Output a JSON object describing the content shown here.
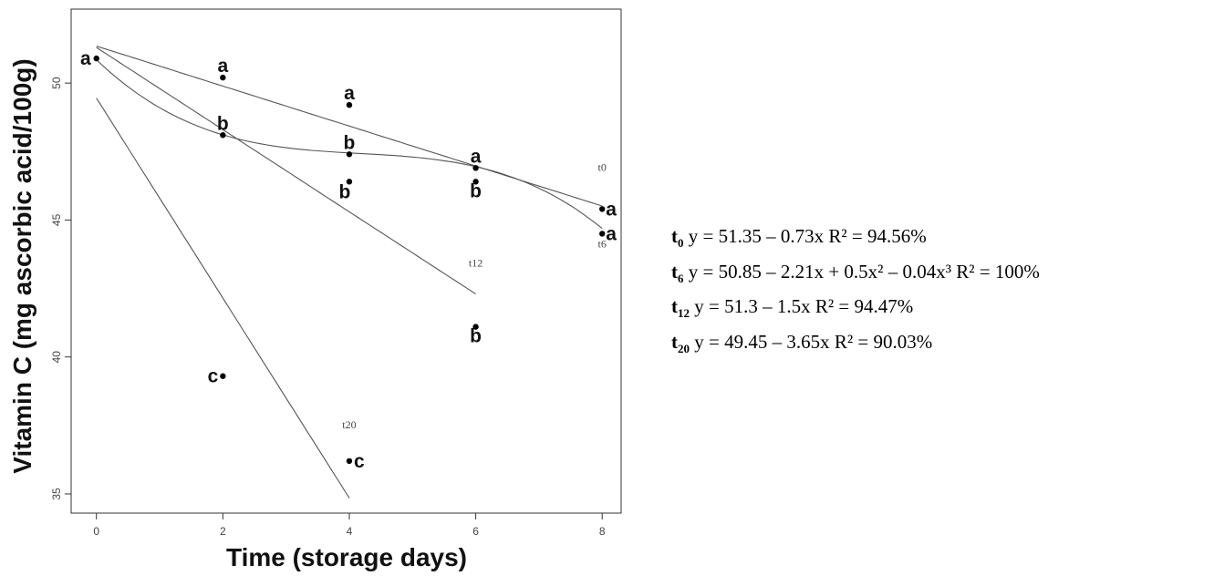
{
  "chart_data": {
    "type": "scatter",
    "xlabel": "Time (storage days)",
    "ylabel": "Vitamin C (mg ascorbic acid/100g)",
    "xlim": [
      -0.4,
      8.3
    ],
    "ylim": [
      34.3,
      52.7
    ],
    "x_ticks": [
      0,
      2,
      4,
      6,
      8
    ],
    "y_ticks": [
      35,
      40,
      45,
      50
    ],
    "grid": false,
    "points": [
      {
        "x": 0,
        "y": 50.9,
        "label": "a"
      },
      {
        "x": 2,
        "y": 50.2,
        "label": "a"
      },
      {
        "x": 2,
        "y": 48.1,
        "label": "b"
      },
      {
        "x": 2,
        "y": 39.3,
        "label": "c"
      },
      {
        "x": 4,
        "y": 49.2,
        "label": "a"
      },
      {
        "x": 4,
        "y": 47.4,
        "label": "b"
      },
      {
        "x": 4,
        "y": 46.4,
        "label": "b"
      },
      {
        "x": 4,
        "y": 36.2,
        "label": "c"
      },
      {
        "x": 6,
        "y": 46.9,
        "label": "a"
      },
      {
        "x": 6,
        "y": 46.4,
        "label": "b"
      },
      {
        "x": 6,
        "y": 41.1,
        "label": "b"
      },
      {
        "x": 8,
        "y": 45.4,
        "label": "a"
      },
      {
        "x": 8,
        "y": 44.5,
        "label": "a"
      }
    ],
    "fits": [
      {
        "name": "t0",
        "coef": [
          51.35,
          -0.73
        ],
        "x_range": [
          0,
          8
        ],
        "label_at": [
          8,
          46.8
        ]
      },
      {
        "name": "t6",
        "coef": [
          50.85,
          -2.21,
          0.5,
          -0.04
        ],
        "x_range": [
          0,
          8
        ],
        "label_at": [
          8,
          44.0
        ]
      },
      {
        "name": "t12",
        "coef": [
          51.3,
          -1.5
        ],
        "x_range": [
          0,
          6
        ],
        "label_at": [
          6,
          43.3
        ]
      },
      {
        "name": "t20",
        "coef": [
          49.45,
          -3.65
        ],
        "x_range": [
          0,
          4
        ],
        "label_at": [
          4,
          37.4
        ]
      }
    ],
    "equations": [
      {
        "symbol": "t",
        "sub": "0",
        "text": " y = 51.35 – 0.73x R² = 94.56%"
      },
      {
        "symbol": "t",
        "sub": "6",
        "text": " y = 50.85 – 2.21x + 0.5x² – 0.04x³  R² = 100%"
      },
      {
        "symbol": "t",
        "sub": "12",
        "text": " y = 51.3 – 1.5x   R² = 94.47%"
      },
      {
        "symbol": "t",
        "sub": "20",
        "text": " y = 49.45 – 3.65x   R² = 90.03%"
      }
    ]
  }
}
